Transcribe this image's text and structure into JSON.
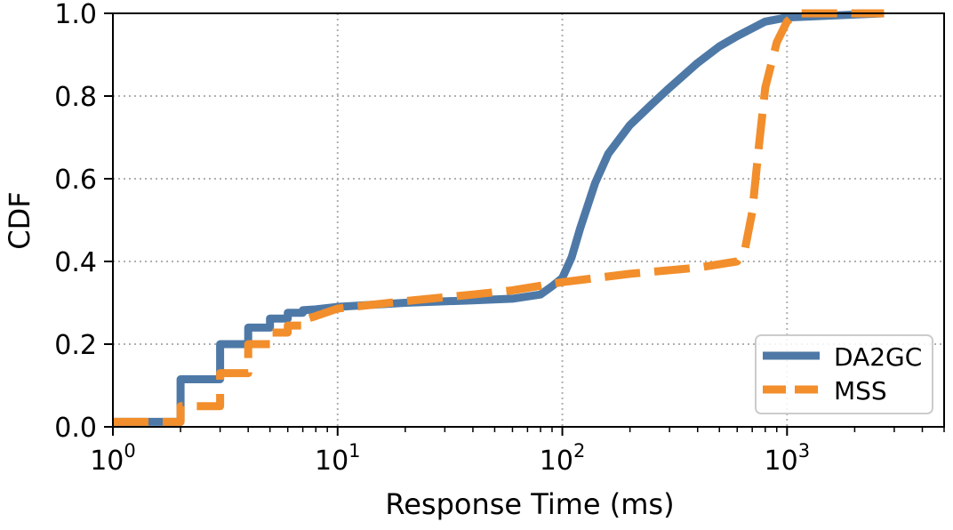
{
  "chart_data": {
    "type": "line",
    "title": "",
    "xlabel": "Response Time (ms)",
    "ylabel": "CDF",
    "xscale": "log",
    "xlim": [
      1,
      5000
    ],
    "ylim": [
      0,
      1.0
    ],
    "grid": true,
    "legend_position": "lower-right",
    "x_ticks": [
      {
        "value": 1,
        "base": "10",
        "exp": "0"
      },
      {
        "value": 10,
        "base": "10",
        "exp": "1"
      },
      {
        "value": 100,
        "base": "10",
        "exp": "2"
      },
      {
        "value": 1000,
        "base": "10",
        "exp": "3"
      }
    ],
    "y_ticks": [
      {
        "value": 0.0,
        "label": "0.0"
      },
      {
        "value": 0.2,
        "label": "0.2"
      },
      {
        "value": 0.4,
        "label": "0.4"
      },
      {
        "value": 0.6,
        "label": "0.6"
      },
      {
        "value": 0.8,
        "label": "0.8"
      },
      {
        "value": 1.0,
        "label": "1.0"
      }
    ],
    "series": [
      {
        "name": "DA2GC",
        "color": "#4e79a7",
        "style": "solid",
        "points": [
          [
            1,
            0.012
          ],
          [
            2,
            0.012
          ],
          [
            2,
            0.115
          ],
          [
            3,
            0.115
          ],
          [
            3,
            0.2
          ],
          [
            4,
            0.2
          ],
          [
            4,
            0.24
          ],
          [
            5,
            0.24
          ],
          [
            5,
            0.262
          ],
          [
            6,
            0.262
          ],
          [
            6,
            0.276
          ],
          [
            7,
            0.276
          ],
          [
            7,
            0.282
          ],
          [
            8,
            0.284
          ],
          [
            10,
            0.29
          ],
          [
            20,
            0.3
          ],
          [
            40,
            0.306
          ],
          [
            60,
            0.31
          ],
          [
            80,
            0.32
          ],
          [
            90,
            0.34
          ],
          [
            100,
            0.36
          ],
          [
            110,
            0.41
          ],
          [
            120,
            0.48
          ],
          [
            140,
            0.59
          ],
          [
            160,
            0.66
          ],
          [
            200,
            0.73
          ],
          [
            250,
            0.78
          ],
          [
            300,
            0.82
          ],
          [
            400,
            0.88
          ],
          [
            500,
            0.92
          ],
          [
            600,
            0.945
          ],
          [
            800,
            0.98
          ],
          [
            1000,
            0.99
          ],
          [
            2000,
            0.997
          ],
          [
            2700,
            1.0
          ]
        ]
      },
      {
        "name": "MSS",
        "color": "#f28e2b",
        "style": "dashed",
        "points": [
          [
            1,
            0.012
          ],
          [
            2,
            0.012
          ],
          [
            2,
            0.05
          ],
          [
            3,
            0.05
          ],
          [
            3,
            0.13
          ],
          [
            4,
            0.13
          ],
          [
            4,
            0.2
          ],
          [
            5,
            0.2
          ],
          [
            5,
            0.228
          ],
          [
            6,
            0.228
          ],
          [
            6,
            0.245
          ],
          [
            7,
            0.245
          ],
          [
            7,
            0.258
          ],
          [
            8,
            0.268
          ],
          [
            10,
            0.286
          ],
          [
            20,
            0.304
          ],
          [
            40,
            0.32
          ],
          [
            60,
            0.33
          ],
          [
            100,
            0.35
          ],
          [
            200,
            0.37
          ],
          [
            400,
            0.385
          ],
          [
            600,
            0.4
          ],
          [
            650,
            0.43
          ],
          [
            700,
            0.52
          ],
          [
            750,
            0.68
          ],
          [
            800,
            0.82
          ],
          [
            900,
            0.93
          ],
          [
            1000,
            0.98
          ],
          [
            1100,
            1.0
          ],
          [
            2700,
            1.0
          ]
        ]
      }
    ]
  }
}
